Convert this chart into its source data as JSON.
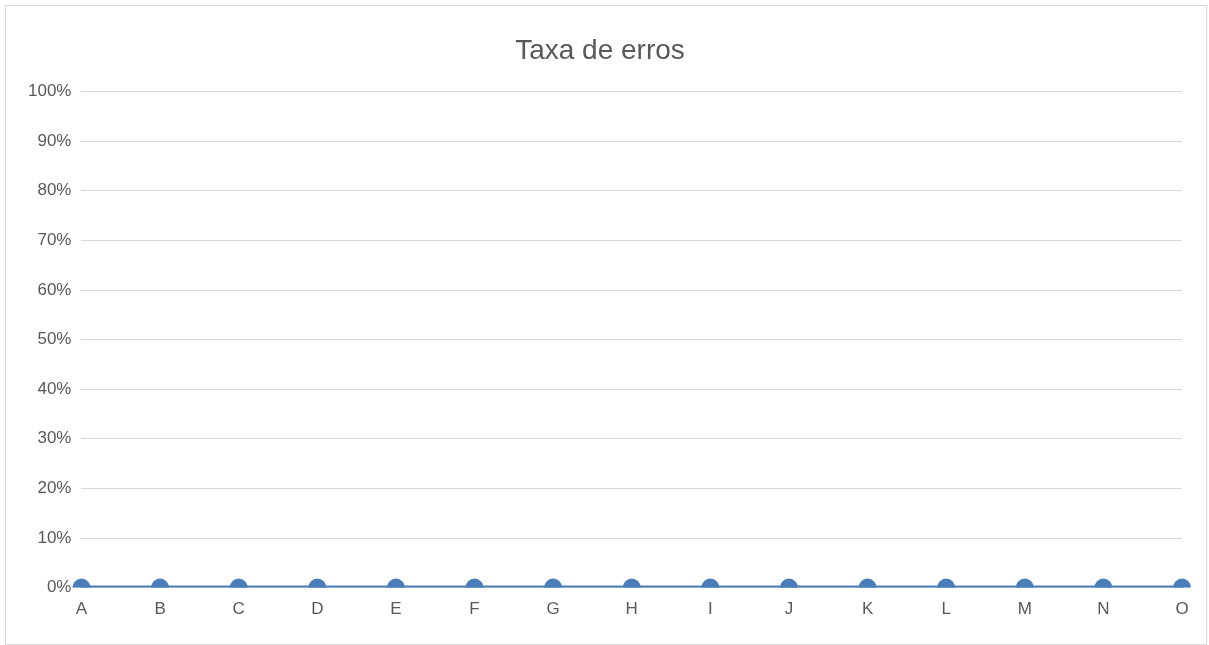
{
  "chart_data": {
    "type": "line",
    "title": "Taxa de erros",
    "categories": [
      "A",
      "B",
      "C",
      "D",
      "E",
      "F",
      "G",
      "H",
      "I",
      "J",
      "K",
      "L",
      "M",
      "N",
      "O"
    ],
    "series": [
      {
        "color": "#4a7ebb",
        "values": [
          0,
          0,
          0,
          0,
          0,
          0,
          0,
          0,
          0,
          0,
          0,
          0,
          0,
          0,
          0
        ]
      }
    ],
    "ylim": [
      0,
      100
    ],
    "yticks": [
      {
        "value": 0,
        "label": "0%"
      },
      {
        "value": 10,
        "label": "10%"
      },
      {
        "value": 20,
        "label": "20%"
      },
      {
        "value": 30,
        "label": "30%"
      },
      {
        "value": 40,
        "label": "40%"
      },
      {
        "value": 50,
        "label": "50%"
      },
      {
        "value": 60,
        "label": "60%"
      },
      {
        "value": 70,
        "label": "70%"
      },
      {
        "value": 80,
        "label": "80%"
      },
      {
        "value": 90,
        "label": "90%"
      },
      {
        "value": 100,
        "label": "100%"
      }
    ],
    "grid": "y",
    "marker": "circle",
    "line_style": "solid"
  }
}
